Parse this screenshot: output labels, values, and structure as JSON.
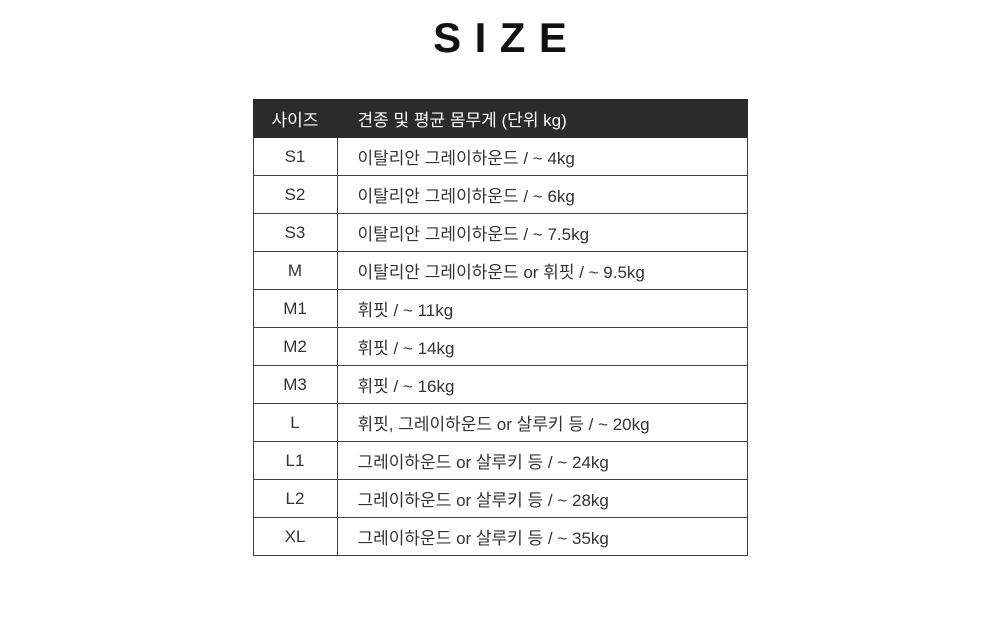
{
  "title": "SIZE",
  "colors": {
    "header_bg": "#2b2b2b",
    "header_text": "#ffffff",
    "body_text": "#333333",
    "border": "#3f3f3f"
  },
  "table": {
    "headers": {
      "size": "사이즈",
      "desc": "견종 및 평균 몸무게 (단위 kg)"
    },
    "rows": [
      {
        "size": "S1",
        "desc": "이탈리안 그레이하운드 / ~ 4kg"
      },
      {
        "size": "S2",
        "desc": "이탈리안 그레이하운드 / ~ 6kg"
      },
      {
        "size": "S3",
        "desc": "이탈리안 그레이하운드 / ~ 7.5kg"
      },
      {
        "size": "M",
        "desc": "이탈리안 그레이하운드 or 휘핏 / ~ 9.5kg"
      },
      {
        "size": "M1",
        "desc": "휘핏 / ~ 11kg"
      },
      {
        "size": "M2",
        "desc": "휘핏 / ~ 14kg"
      },
      {
        "size": "M3",
        "desc": "휘핏 / ~ 16kg"
      },
      {
        "size": "L",
        "desc": "휘핏, 그레이하운드 or 살루키 등 / ~ 20kg"
      },
      {
        "size": "L1",
        "desc": "그레이하운드 or 살루키 등 / ~ 24kg"
      },
      {
        "size": "L2",
        "desc": "그레이하운드 or 살루키 등 / ~ 28kg"
      },
      {
        "size": "XL",
        "desc": "그레이하운드 or 살루키 등 / ~ 35kg"
      }
    ]
  }
}
